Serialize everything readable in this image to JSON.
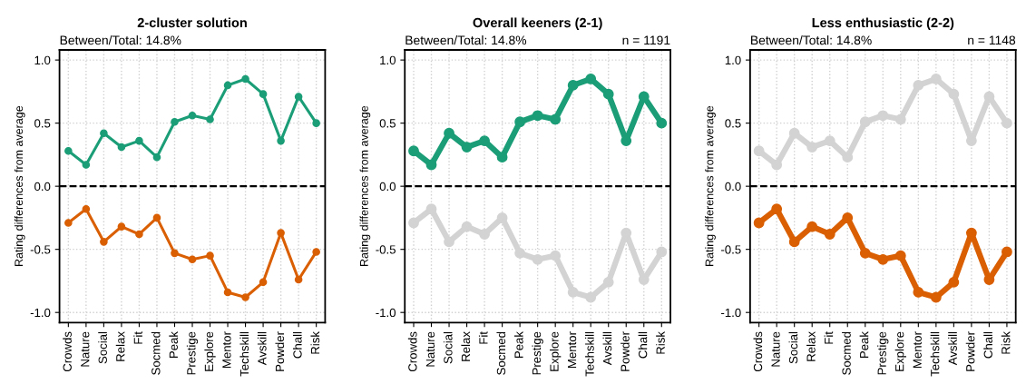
{
  "chart_data": [
    {
      "type": "line",
      "title": "2-cluster solution",
      "ylabel": "Rating differences from average",
      "annotations": [
        "Between/Total: 14.8%"
      ],
      "categories": [
        "Crowds",
        "Nature",
        "Social",
        "Relax",
        "Fit",
        "Socmed",
        "Peak",
        "Prestige",
        "Explore",
        "Mentor",
        "Techskill",
        "Avskill",
        "Powder",
        "Chall",
        "Risk"
      ],
      "series": [
        {
          "color": "#1b9e77",
          "values": [
            0.28,
            0.17,
            0.42,
            0.31,
            0.36,
            0.23,
            0.51,
            0.56,
            0.53,
            0.8,
            0.85,
            0.73,
            0.36,
            0.71,
            0.5
          ]
        },
        {
          "color": "#d95f02",
          "values": [
            -0.29,
            -0.18,
            -0.44,
            -0.32,
            -0.38,
            -0.25,
            -0.53,
            -0.58,
            -0.55,
            -0.84,
            -0.88,
            -0.76,
            -0.37,
            -0.74,
            -0.52
          ]
        }
      ],
      "ylim": [
        -1.08,
        1.08
      ],
      "yticks": [
        {
          "value": -1.0,
          "label": "-1.0"
        },
        {
          "value": -0.5,
          "label": "-0.5"
        },
        {
          "value": 0.0,
          "label": "0.0"
        },
        {
          "value": 0.5,
          "label": "0.5"
        },
        {
          "value": 1.0,
          "label": "1.0"
        }
      ],
      "ref_lines": [
        {
          "axis": "y",
          "value": 0,
          "color": "#000000",
          "line_style": "dashed"
        }
      ],
      "grid": true,
      "marker": "circle",
      "line_style": "solid"
    },
    {
      "type": "line",
      "title": "Overall keeners (2-1)",
      "ylabel": "Rating differences from average",
      "annotations": [
        "Between/Total: 14.8%",
        "n = 1191"
      ],
      "categories": [
        "Crowds",
        "Nature",
        "Social",
        "Relax",
        "Fit",
        "Socmed",
        "Peak",
        "Prestige",
        "Explore",
        "Mentor",
        "Techskill",
        "Avskill",
        "Powder",
        "Chall",
        "Risk"
      ],
      "series": [
        {
          "color": "#d3d3d3",
          "values": [
            -0.29,
            -0.18,
            -0.44,
            -0.32,
            -0.38,
            -0.25,
            -0.53,
            -0.58,
            -0.55,
            -0.84,
            -0.88,
            -0.76,
            -0.37,
            -0.74,
            -0.52
          ]
        },
        {
          "color": "#1b9e77",
          "values": [
            0.28,
            0.17,
            0.42,
            0.31,
            0.36,
            0.23,
            0.51,
            0.56,
            0.53,
            0.8,
            0.85,
            0.73,
            0.36,
            0.71,
            0.5
          ]
        }
      ],
      "ylim": [
        -1.08,
        1.08
      ],
      "yticks": [
        {
          "value": -1.0,
          "label": "-1.0"
        },
        {
          "value": -0.5,
          "label": "-0.5"
        },
        {
          "value": 0.0,
          "label": "0.0"
        },
        {
          "value": 0.5,
          "label": "0.5"
        },
        {
          "value": 1.0,
          "label": "1.0"
        }
      ],
      "ref_lines": [
        {
          "axis": "y",
          "value": 0,
          "color": "#000000",
          "line_style": "dashed"
        }
      ],
      "grid": true,
      "marker": "circle",
      "line_style": "solid"
    },
    {
      "type": "line",
      "title": "Less enthusiastic (2-2)",
      "ylabel": "Rating differences from average",
      "annotations": [
        "Between/Total: 14.8%",
        "n = 1148"
      ],
      "categories": [
        "Crowds",
        "Nature",
        "Social",
        "Relax",
        "Fit",
        "Socmed",
        "Peak",
        "Prestige",
        "Explore",
        "Mentor",
        "Techskill",
        "Avskill",
        "Powder",
        "Chall",
        "Risk"
      ],
      "series": [
        {
          "color": "#d3d3d3",
          "values": [
            0.28,
            0.17,
            0.42,
            0.31,
            0.36,
            0.23,
            0.51,
            0.56,
            0.53,
            0.8,
            0.85,
            0.73,
            0.36,
            0.71,
            0.5
          ]
        },
        {
          "color": "#d95f02",
          "values": [
            -0.29,
            -0.18,
            -0.44,
            -0.32,
            -0.38,
            -0.25,
            -0.53,
            -0.58,
            -0.55,
            -0.84,
            -0.88,
            -0.76,
            -0.37,
            -0.74,
            -0.52
          ]
        }
      ],
      "ylim": [
        -1.08,
        1.08
      ],
      "yticks": [
        {
          "value": -1.0,
          "label": "-1.0"
        },
        {
          "value": -0.5,
          "label": "-0.5"
        },
        {
          "value": 0.0,
          "label": "0.0"
        },
        {
          "value": 0.5,
          "label": "0.5"
        },
        {
          "value": 1.0,
          "label": "1.0"
        }
      ],
      "ref_lines": [
        {
          "axis": "y",
          "value": 0,
          "color": "#000000",
          "line_style": "dashed"
        }
      ],
      "grid": true,
      "marker": "circle",
      "line_style": "solid"
    }
  ]
}
